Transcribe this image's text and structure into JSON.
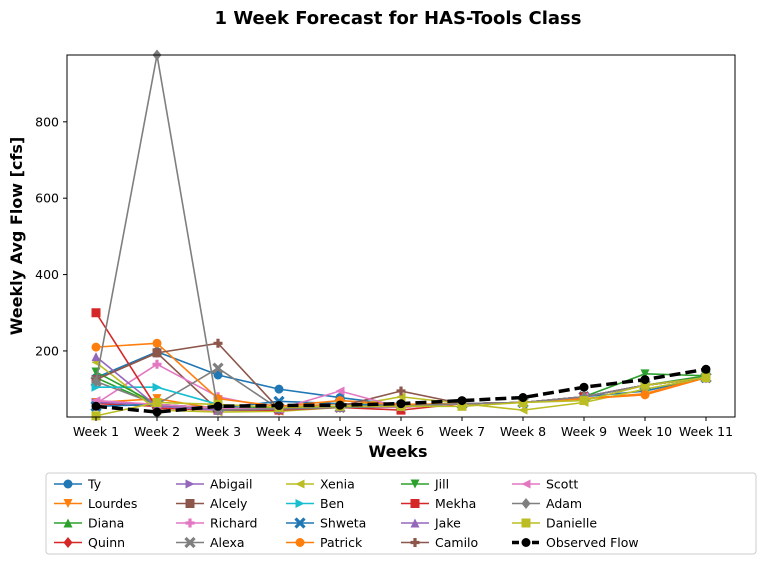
{
  "chart_data": {
    "type": "line",
    "title": "1 Week Forecast for HAS-Tools Class",
    "xlabel": "Weeks",
    "ylabel": "Weekly Avg Flow [cfs]",
    "categories": [
      "Week 1",
      "Week 2",
      "Week 3",
      "Week 4",
      "Week 5",
      "Week 6",
      "Week 7",
      "Week 8",
      "Week 9",
      "Week 10",
      "Week 11"
    ],
    "ylim": [
      27,
      975
    ],
    "yticks": [
      200,
      400,
      600,
      800
    ],
    "grid": false,
    "legend_position": "below-plot",
    "legend_columns": 6,
    "series": [
      {
        "name": "Ty",
        "color": "#1f77b4",
        "marker": "circle",
        "values": [
          130,
          198,
          137,
          100,
          78,
          58,
          62,
          65,
          80,
          95,
          130
        ]
      },
      {
        "name": "Lourdes",
        "color": "#ff7f0e",
        "marker": "triangle-down",
        "values": [
          65,
          75,
          48,
          52,
          62,
          58,
          62,
          65,
          75,
          88,
          132
        ]
      },
      {
        "name": "Diana",
        "color": "#2ca02c",
        "marker": "triangle-up",
        "values": [
          130,
          58,
          45,
          50,
          55,
          55,
          62,
          65,
          80,
          110,
          135
        ]
      },
      {
        "name": "Quinn",
        "color": "#d62728",
        "marker": "diamond",
        "values": [
          62,
          55,
          45,
          45,
          55,
          55,
          62,
          65,
          80,
          110,
          130
        ]
      },
      {
        "name": "Abigail",
        "color": "#9467bd",
        "marker": "triangle-right",
        "values": [
          65,
          60,
          50,
          52,
          55,
          55,
          62,
          65,
          80,
          110,
          130
        ]
      },
      {
        "name": "Alcely",
        "color": "#8c564b",
        "marker": "square",
        "values": [
          125,
          195,
          45,
          48,
          52,
          55,
          62,
          65,
          80,
          110,
          130
        ]
      },
      {
        "name": "Richard",
        "color": "#e377c2",
        "marker": "plus",
        "values": [
          62,
          165,
          80,
          48,
          52,
          52,
          62,
          65,
          80,
          110,
          130
        ]
      },
      {
        "name": "Alexa",
        "color": "#7f7f7f",
        "marker": "x",
        "values": [
          120,
          60,
          155,
          48,
          52,
          55,
          62,
          65,
          80,
          110,
          130
        ]
      },
      {
        "name": "Xenia",
        "color": "#bcbd22",
        "marker": "triangle-left",
        "values": [
          170,
          45,
          40,
          42,
          52,
          80,
          62,
          45,
          65,
          100,
          130
        ]
      },
      {
        "name": "Ben",
        "color": "#17becf",
        "marker": "triangle-right",
        "values": [
          105,
          105,
          60,
          50,
          55,
          55,
          62,
          65,
          80,
          110,
          130
        ]
      },
      {
        "name": "Shweta",
        "color": "#1f77b4",
        "marker": "x",
        "values": [
          55,
          60,
          50,
          68,
          62,
          55,
          62,
          65,
          80,
          110,
          130
        ]
      },
      {
        "name": "Patrick",
        "color": "#ff7f0e",
        "marker": "circle",
        "values": [
          210,
          220,
          75,
          55,
          70,
          60,
          62,
          65,
          75,
          85,
          130
        ]
      },
      {
        "name": "Jill",
        "color": "#2ca02c",
        "marker": "triangle-down",
        "values": [
          145,
          60,
          50,
          52,
          55,
          55,
          62,
          65,
          80,
          140,
          135
        ]
      },
      {
        "name": "Mekha",
        "color": "#d62728",
        "marker": "square",
        "values": [
          300,
          50,
          45,
          45,
          52,
          45,
          62,
          65,
          80,
          110,
          130
        ]
      },
      {
        "name": "Jake",
        "color": "#9467bd",
        "marker": "triangle-up",
        "values": [
          185,
          55,
          45,
          48,
          52,
          55,
          62,
          65,
          80,
          110,
          130
        ]
      },
      {
        "name": "Camilo",
        "color": "#8c564b",
        "marker": "plus",
        "values": [
          125,
          195,
          220,
          48,
          55,
          95,
          62,
          65,
          80,
          110,
          130
        ]
      },
      {
        "name": "Scott",
        "color": "#e377c2",
        "marker": "triangle-left",
        "values": [
          70,
          60,
          50,
          48,
          95,
          52,
          62,
          65,
          80,
          110,
          130
        ]
      },
      {
        "name": "Adam",
        "color": "#7f7f7f",
        "marker": "diamond",
        "values": [
          120,
          975,
          45,
          48,
          52,
          55,
          62,
          65,
          80,
          110,
          130
        ]
      },
      {
        "name": "Danielle",
        "color": "#bcbd22",
        "marker": "square",
        "values": [
          30,
          65,
          60,
          52,
          55,
          55,
          55,
          65,
          70,
          110,
          130
        ]
      },
      {
        "name": "Observed Flow",
        "color": "#000000",
        "marker": "circle",
        "dashed": true,
        "values": [
          55,
          40,
          55,
          57,
          58,
          62,
          70,
          78,
          105,
          125,
          152
        ]
      }
    ]
  }
}
